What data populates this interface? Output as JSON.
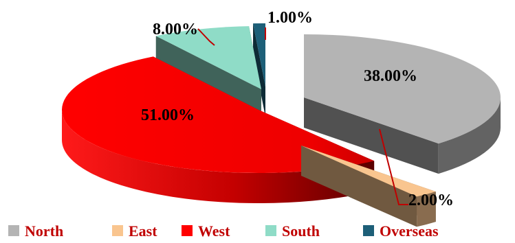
{
  "chart_data": {
    "type": "pie",
    "style": "3d-exploded",
    "categories": [
      "North",
      "East",
      "West",
      "South",
      "Overseas"
    ],
    "values": [
      38,
      2,
      51,
      8,
      1
    ],
    "data_labels": [
      "38.00%",
      "2.00%",
      "51.00%",
      "8.00%",
      "1.00%"
    ],
    "colors": [
      "#b4b4b4",
      "#f9c58f",
      "#ff0000",
      "#8fdcc7",
      "#1d5f78"
    ],
    "legend_position": "bottom",
    "legend_text_color": "#c00000"
  }
}
